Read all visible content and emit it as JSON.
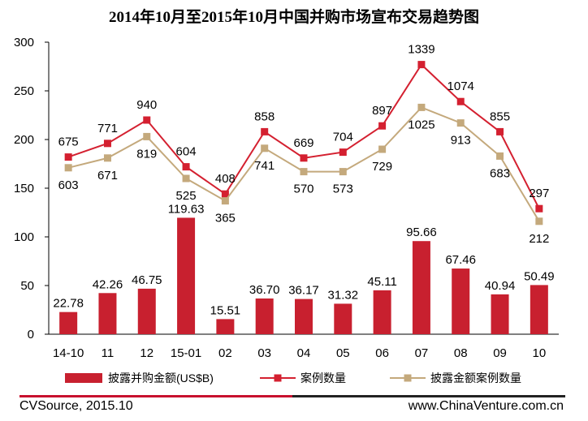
{
  "chart_data": {
    "type": "bar+line",
    "title": "2014年10月至2015年10月中国并购市场宣布交易趋势图",
    "categories": [
      "14-10",
      "11",
      "12",
      "15-01",
      "02",
      "03",
      "04",
      "05",
      "06",
      "07",
      "08",
      "09",
      "10"
    ],
    "ylim": [
      0,
      300
    ],
    "yticks": [
      0,
      50,
      100,
      150,
      200,
      250,
      300
    ],
    "grid": false,
    "legend_position": "bottom",
    "bar_series": {
      "name": "披露并购金额(US$B)",
      "color": "#c8202f",
      "values": [
        22.78,
        42.26,
        46.75,
        119.63,
        15.51,
        36.7,
        36.17,
        31.32,
        45.11,
        95.66,
        67.46,
        40.94,
        50.49
      ],
      "labels": [
        "22.78",
        "42.26",
        "46.75",
        "119.63",
        "15.51",
        "36.70",
        "36.17",
        "31.32",
        "45.11",
        "95.66",
        "67.46",
        "40.94",
        "50.49"
      ]
    },
    "line_series": [
      {
        "name": "案例数量",
        "color": "#d42030",
        "plotted_values": [
          182,
          196,
          220,
          172,
          144,
          208,
          181,
          187,
          214,
          277,
          239,
          208,
          129
        ],
        "labels": [
          "675",
          "771",
          "940",
          "604",
          "408",
          "858",
          "669",
          "704",
          "897",
          "1339",
          "1074",
          "855",
          "297"
        ]
      },
      {
        "name": "披露金额案例数量",
        "color": "#c4a97c",
        "plotted_values": [
          171,
          181,
          203,
          160,
          137,
          191,
          167,
          167,
          190,
          233,
          217,
          183,
          116
        ],
        "labels": [
          "603",
          "671",
          "819",
          "525",
          "365",
          "741",
          "570",
          "573",
          "729",
          "1025",
          "913",
          "683",
          "212"
        ]
      }
    ]
  },
  "footer": {
    "source": "CVSource, 2015.10",
    "website": "www.ChinaVenture.com.cn"
  }
}
